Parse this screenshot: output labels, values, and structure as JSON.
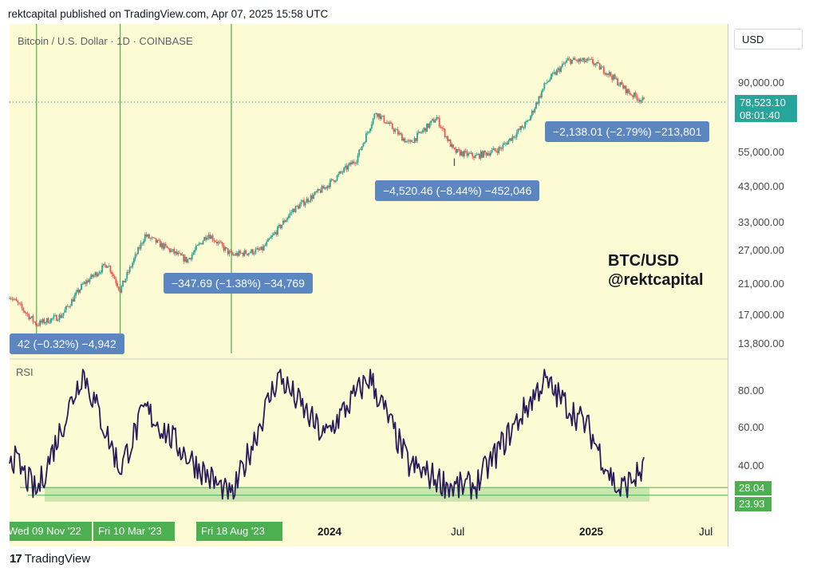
{
  "header": "rektcapital published on TradingView.com, Apr 07, 2025 15:58 UTC",
  "symbol_label": "Bitcoin / U.S. Dollar · 1D · COINBASE",
  "currency_button": "USD",
  "price_axis_labels": [
    "90,000.00",
    "55,000.00",
    "43,000.00",
    "33,000.00",
    "27,000.00",
    "21,000.00",
    "17,000.00",
    "13,800.00"
  ],
  "last_price": "78,523.10",
  "countdown": "08:01:40",
  "measure_labels": [
    "42 (−0.32%) −4,942",
    "−347.69 (−1.38%) −34,769",
    "−4,520.46 (−8.44%) −452,046",
    "−2,138.01 (−2.79%) −213,801"
  ],
  "watermark": {
    "line1": "BTC/USD",
    "line2": "@rektcapital"
  },
  "rsi_label": "RSI",
  "rsi_axis_labels": [
    "80.00",
    "60.00",
    "40.00"
  ],
  "rsi_levels": [
    "28.04",
    "23.93"
  ],
  "date_labels": [
    "Wed 09 Nov '22",
    "Fri 10 Mar '23",
    "Fri 18 Aug '23"
  ],
  "x_labels": [
    "2024",
    "Jul",
    "2025",
    "Jul"
  ],
  "logo_text": "TradingView",
  "colors": {
    "panel_bg": "#fdfbd3",
    "up": "#26a69a",
    "down": "#ef5350",
    "rsi": "#2a1b5c",
    "marker": "#4caf50",
    "measure": "#5b86c0"
  },
  "chart_data": {
    "type": "candlestick",
    "title": "Bitcoin / U.S. Dollar · 1D · COINBASE",
    "scale": "log",
    "price_series": [
      {
        "date": "2022-10-01",
        "close": 19500
      },
      {
        "date": "2022-11-09",
        "close": 15800
      },
      {
        "date": "2022-12-15",
        "close": 16800
      },
      {
        "date": "2023-01-15",
        "close": 21000
      },
      {
        "date": "2023-02-20",
        "close": 24500
      },
      {
        "date": "2023-03-10",
        "close": 20200
      },
      {
        "date": "2023-04-15",
        "close": 30000
      },
      {
        "date": "2023-06-15",
        "close": 25000
      },
      {
        "date": "2023-07-15",
        "close": 30400
      },
      {
        "date": "2023-08-18",
        "close": 26000
      },
      {
        "date": "2023-10-01",
        "close": 27000
      },
      {
        "date": "2023-11-15",
        "close": 36000
      },
      {
        "date": "2024-01-01",
        "close": 42500
      },
      {
        "date": "2024-02-15",
        "close": 52000
      },
      {
        "date": "2024-03-14",
        "close": 73000
      },
      {
        "date": "2024-05-01",
        "close": 58000
      },
      {
        "date": "2024-06-10",
        "close": 70000
      },
      {
        "date": "2024-07-05",
        "close": 55000
      },
      {
        "date": "2024-08-05",
        "close": 53000
      },
      {
        "date": "2024-09-10",
        "close": 56000
      },
      {
        "date": "2024-10-20",
        "close": 68000
      },
      {
        "date": "2024-11-15",
        "close": 90000
      },
      {
        "date": "2024-12-17",
        "close": 106000
      },
      {
        "date": "2025-01-20",
        "close": 105000
      },
      {
        "date": "2025-02-15",
        "close": 96000
      },
      {
        "date": "2025-03-15",
        "close": 84000
      },
      {
        "date": "2025-04-07",
        "close": 78523
      }
    ],
    "rsi_series": [
      {
        "date": "2022-10-01",
        "value": 47
      },
      {
        "date": "2022-11-09",
        "value": 25
      },
      {
        "date": "2023-01-15",
        "value": 90
      },
      {
        "date": "2023-03-10",
        "value": 38
      },
      {
        "date": "2023-04-15",
        "value": 70
      },
      {
        "date": "2023-06-15",
        "value": 45
      },
      {
        "date": "2023-08-18",
        "value": 22
      },
      {
        "date": "2023-10-25",
        "value": 88
      },
      {
        "date": "2023-12-30",
        "value": 55
      },
      {
        "date": "2024-03-05",
        "value": 87
      },
      {
        "date": "2024-05-01",
        "value": 40
      },
      {
        "date": "2024-07-05",
        "value": 28
      },
      {
        "date": "2024-08-05",
        "value": 29
      },
      {
        "date": "2024-11-12",
        "value": 85
      },
      {
        "date": "2025-01-15",
        "value": 60
      },
      {
        "date": "2025-02-28",
        "value": 26
      },
      {
        "date": "2025-04-07",
        "value": 38
      }
    ],
    "rsi_levels": [
      28.04,
      23.93
    ],
    "markers": [
      "Wed 09 Nov '22",
      "Fri 10 Mar '23",
      "Fri 18 Aug '23"
    ]
  }
}
